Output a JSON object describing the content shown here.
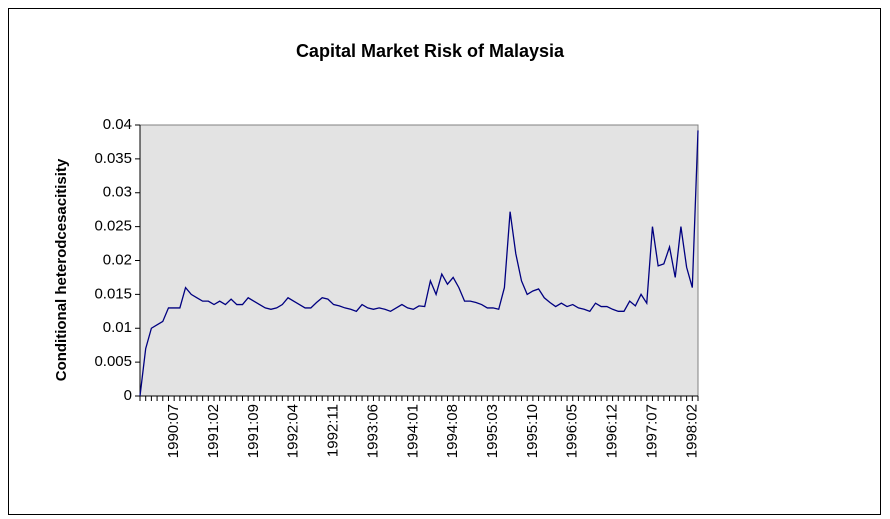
{
  "chart_data": {
    "type": "line",
    "title": "Capital Market Risk of Malaysia",
    "y_label": "Conditional heterodcesacitisity",
    "categories": [
      null,
      null,
      null,
      null,
      null,
      null,
      "1990:07",
      null,
      null,
      null,
      null,
      null,
      null,
      "1991:02",
      null,
      null,
      null,
      null,
      null,
      null,
      "1991:09",
      null,
      null,
      null,
      null,
      null,
      null,
      "1992:04",
      null,
      null,
      null,
      null,
      null,
      null,
      "1992:11",
      null,
      null,
      null,
      null,
      null,
      null,
      "1993:06",
      null,
      null,
      null,
      null,
      null,
      null,
      "1994:01",
      null,
      null,
      null,
      null,
      null,
      null,
      "1994:08",
      null,
      null,
      null,
      null,
      null,
      null,
      "1995:03",
      null,
      null,
      null,
      null,
      null,
      null,
      "1995:10",
      null,
      null,
      null,
      null,
      null,
      null,
      "1996:05",
      null,
      null,
      null,
      null,
      null,
      null,
      "1996:12",
      null,
      null,
      null,
      null,
      null,
      null,
      "1997:07",
      null,
      null,
      null,
      null,
      null,
      null,
      "1998:02",
      null
    ],
    "values": [
      0,
      0.007,
      0.01,
      0.0105,
      0.011,
      0.013,
      0.013,
      0.013,
      0.016,
      0.015,
      0.0145,
      0.014,
      0.014,
      0.0135,
      0.014,
      0.0135,
      0.0143,
      0.0135,
      0.0135,
      0.0145,
      0.014,
      0.0135,
      0.013,
      0.0128,
      0.013,
      0.0135,
      0.0145,
      0.014,
      0.0135,
      0.013,
      0.013,
      0.0138,
      0.0145,
      0.0143,
      0.0135,
      0.0133,
      0.013,
      0.0128,
      0.0125,
      0.0135,
      0.013,
      0.0128,
      0.013,
      0.0128,
      0.0125,
      0.013,
      0.0135,
      0.013,
      0.0128,
      0.0133,
      0.0132,
      0.017,
      0.015,
      0.018,
      0.0165,
      0.0175,
      0.016,
      0.014,
      0.014,
      0.0138,
      0.0135,
      0.013,
      0.013,
      0.0128,
      0.016,
      0.0272,
      0.021,
      0.017,
      0.015,
      0.0155,
      0.0158,
      0.0145,
      0.0138,
      0.0132,
      0.0137,
      0.0132,
      0.0135,
      0.013,
      0.0128,
      0.0125,
      0.0137,
      0.0132,
      0.0132,
      0.0128,
      0.0125,
      0.0125,
      0.014,
      0.0133,
      0.015,
      0.0137,
      0.025,
      0.0192,
      0.0195,
      0.022,
      0.0175,
      0.025,
      0.019,
      0.016,
      0.0392
    ],
    "color": "#000080",
    "plot_background": "#e3e3e3",
    "ylim": [
      0,
      0.04
    ],
    "yticks": [
      0,
      0.005,
      0.01,
      0.015,
      0.02,
      0.025,
      0.03,
      0.035,
      0.04
    ],
    "grid": false
  }
}
